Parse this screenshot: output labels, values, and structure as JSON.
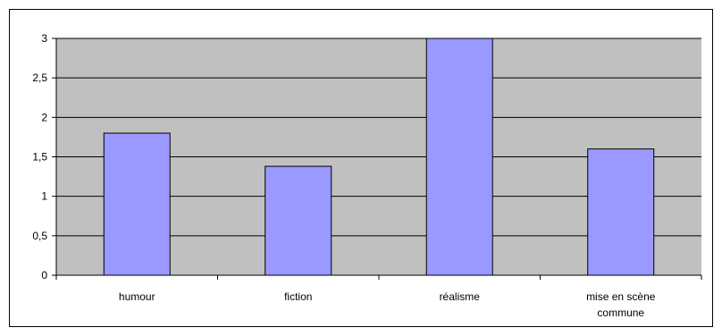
{
  "chart_data": {
    "type": "bar",
    "categories": [
      "humour",
      "fiction",
      "réalisme",
      "mise en scène commune"
    ],
    "category_lines": [
      [
        "humour"
      ],
      [
        "fiction"
      ],
      [
        "réalisme"
      ],
      [
        "mise en scène",
        "commune"
      ]
    ],
    "values": [
      1.8,
      1.38,
      3.0,
      1.6
    ],
    "title": "",
    "xlabel": "",
    "ylabel": "",
    "ylim": [
      0,
      3
    ],
    "y_ticks": [
      "0",
      "0,5",
      "1",
      "1,5",
      "2",
      "2,5",
      "3"
    ],
    "grid": true,
    "legend": "none",
    "colors": {
      "plot_background": "#c0c0c0",
      "bar_fill": "#9999ff",
      "bar_stroke": "#000000",
      "gridline": "#000000",
      "frame": "#000000"
    }
  }
}
